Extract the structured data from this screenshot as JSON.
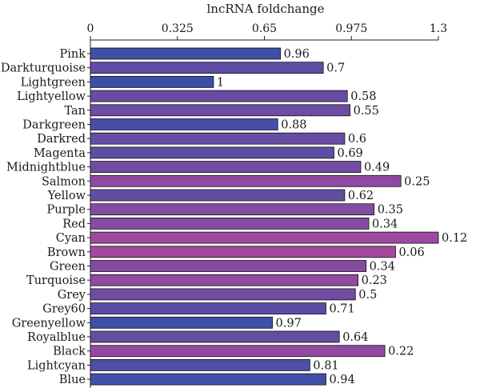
{
  "chart_data": {
    "type": "bar",
    "orientation": "horizontal",
    "title": "",
    "xlabel": "lncRNA foldchange",
    "ylabel": "",
    "xlim": [
      0,
      1.3
    ],
    "x_ticks": [
      0,
      0.325,
      0.65,
      0.975,
      1.3
    ],
    "x_tick_labels": [
      "0",
      "0.325",
      "0.65",
      "0.975",
      "1.3"
    ],
    "x_axis_position": "top",
    "grid": false,
    "legend": "none",
    "bar_color_scale": {
      "start_hex": "#3a4fa8",
      "end_hex": "#a4499e",
      "encodes": "bar label value (high = blue, low = magenta)"
    },
    "categories": [
      "Pink",
      "Darkturquoise",
      "Lightgreen",
      "Lightyellow",
      "Tan",
      "Darkgreen",
      "Darkred",
      "Magenta",
      "Midnightblue",
      "Salmon",
      "Yellow",
      "Purple",
      "Red",
      "Cyan",
      "Brown",
      "Green",
      "Turquoise",
      "Grey",
      "Grey60",
      "Greenyellow",
      "Royalblue",
      "Black",
      "Lightcyan",
      "Blue"
    ],
    "values": [
      0.71,
      0.87,
      0.46,
      0.96,
      0.97,
      0.7,
      0.95,
      0.91,
      1.01,
      1.16,
      0.95,
      1.06,
      1.04,
      1.3,
      1.14,
      1.03,
      1.0,
      0.99,
      0.88,
      0.68,
      0.93,
      1.1,
      0.82,
      0.88
    ],
    "bar_labels": [
      "0.96",
      "0.7",
      "1",
      "0.58",
      "0.55",
      "0.88",
      "0.6",
      "0.69",
      "0.49",
      "0.25",
      "0.62",
      "0.35",
      "0.34",
      "0.12",
      "0.06",
      "0.34",
      "0.23",
      "0.5",
      "0.71",
      "0.97",
      "0.64",
      "0.22",
      "0.81",
      "0.94"
    ]
  }
}
